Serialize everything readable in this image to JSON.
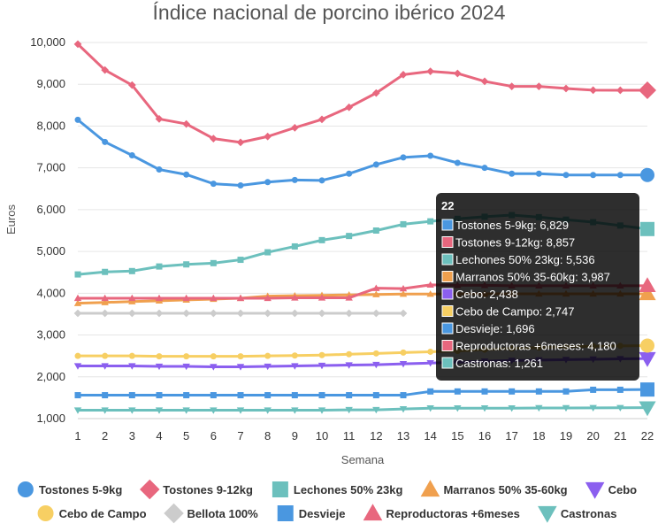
{
  "chart_data": {
    "type": "line",
    "title": "Índice nacional de porcino ibérico 2024",
    "xlabel": "Semana",
    "ylabel": "Euros",
    "ylim": [
      1000,
      10000
    ],
    "yticks": [
      1000,
      2000,
      3000,
      4000,
      5000,
      6000,
      7000,
      8000,
      9000,
      10000
    ],
    "ytick_labels": [
      "1,000",
      "2,000",
      "3,000",
      "4,000",
      "5,000",
      "6,000",
      "7,000",
      "8,000",
      "9,000",
      "10,000"
    ],
    "x": [
      1,
      2,
      3,
      4,
      5,
      6,
      7,
      8,
      9,
      10,
      11,
      12,
      13,
      14,
      15,
      16,
      17,
      18,
      19,
      20,
      21,
      22
    ],
    "grid": "horizontal",
    "legend_position": "bottom",
    "series": [
      {
        "name": "Tostones 5-9kg",
        "color": "#4a97e0",
        "marker": "circle",
        "values": [
          8150,
          7620,
          7300,
          6960,
          6840,
          6620,
          6580,
          6660,
          6710,
          6700,
          6860,
          7080,
          7250,
          7290,
          7120,
          7000,
          6860,
          6860,
          6830,
          6829,
          6829,
          6829
        ]
      },
      {
        "name": "Tostones 9-12kg",
        "color": "#e8677e",
        "marker": "diamond",
        "values": [
          9960,
          9340,
          8980,
          8170,
          8050,
          7700,
          7610,
          7750,
          7960,
          8160,
          8450,
          8790,
          9230,
          9310,
          9260,
          9070,
          8950,
          8950,
          8900,
          8860,
          8857,
          8857
        ]
      },
      {
        "name": "Lechones 50% 23kg",
        "color": "#6cc0bd",
        "marker": "square",
        "values": [
          4450,
          4510,
          4530,
          4640,
          4690,
          4720,
          4800,
          4980,
          5120,
          5270,
          5370,
          5500,
          5650,
          5720,
          5780,
          5830,
          5870,
          5820,
          5760,
          5700,
          5620,
          5536
        ]
      },
      {
        "name": "Marranos 50% 35-60kg",
        "color": "#f0a04e",
        "marker": "triangle",
        "values": [
          3760,
          3780,
          3800,
          3820,
          3840,
          3860,
          3880,
          3930,
          3940,
          3950,
          3960,
          3970,
          3980,
          3980,
          3985,
          3985,
          3987,
          3987,
          3987,
          3987,
          3987,
          3987
        ]
      },
      {
        "name": "Cebo",
        "color": "#8b5fef",
        "marker": "triangle-down",
        "values": [
          2260,
          2260,
          2260,
          2250,
          2250,
          2240,
          2240,
          2250,
          2260,
          2270,
          2280,
          2290,
          2310,
          2330,
          2350,
          2370,
          2390,
          2400,
          2410,
          2420,
          2430,
          2438
        ]
      },
      {
        "name": "Cebo de Campo",
        "color": "#f7cf63",
        "marker": "circle",
        "values": [
          2500,
          2500,
          2500,
          2490,
          2490,
          2490,
          2490,
          2500,
          2510,
          2520,
          2540,
          2560,
          2580,
          2600,
          2620,
          2650,
          2680,
          2700,
          2720,
          2730,
          2740,
          2747
        ]
      },
      {
        "name": "Bellota 100%",
        "color": "#cccccc",
        "marker": "diamond",
        "values": [
          3520,
          3520,
          3520,
          3520,
          3520,
          3520,
          3520,
          3520,
          3520,
          3520,
          3520,
          3520,
          3520,
          null,
          null,
          null,
          null,
          null,
          null,
          null,
          null,
          null
        ]
      },
      {
        "name": "Desvieje",
        "color": "#4a97e0",
        "marker": "square",
        "values": [
          1560,
          1560,
          1560,
          1560,
          1560,
          1560,
          1560,
          1560,
          1560,
          1560,
          1560,
          1560,
          1560,
          1650,
          1650,
          1650,
          1650,
          1650,
          1650,
          1690,
          1690,
          1696
        ]
      },
      {
        "name": "Reproductoras +6meses",
        "color": "#e8677e",
        "marker": "triangle",
        "values": [
          3880,
          3880,
          3880,
          3880,
          3880,
          3880,
          3880,
          3880,
          3890,
          3890,
          3890,
          4120,
          4110,
          4200,
          4190,
          4190,
          4180,
          4180,
          4180,
          4180,
          4180,
          4180
        ]
      },
      {
        "name": "Castronas",
        "color": "#6cc0bd",
        "marker": "triangle-down",
        "values": [
          1200,
          1200,
          1200,
          1200,
          1200,
          1200,
          1200,
          1200,
          1200,
          1200,
          1210,
          1210,
          1230,
          1250,
          1250,
          1250,
          1250,
          1255,
          1255,
          1258,
          1260,
          1261
        ]
      }
    ],
    "tooltip": {
      "title": "22",
      "lines": [
        "Tostones 5-9kg: 6,829",
        "Tostones 9-12kg: 8,857",
        "Lechones 50% 23kg: 5,536",
        "Marranos 50% 35-60kg: 3,987",
        "Cebo: 2,438",
        "Cebo de Campo: 2,747",
        "Desvieje: 1,696",
        "Reproductoras +6meses: 4,180",
        "Castronas: 1,261"
      ],
      "colors": [
        "#4a97e0",
        "#e8677e",
        "#6cc0bd",
        "#f0a04e",
        "#8b5fef",
        "#f7cf63",
        "#4a97e0",
        "#e8677e",
        "#6cc0bd"
      ]
    }
  }
}
